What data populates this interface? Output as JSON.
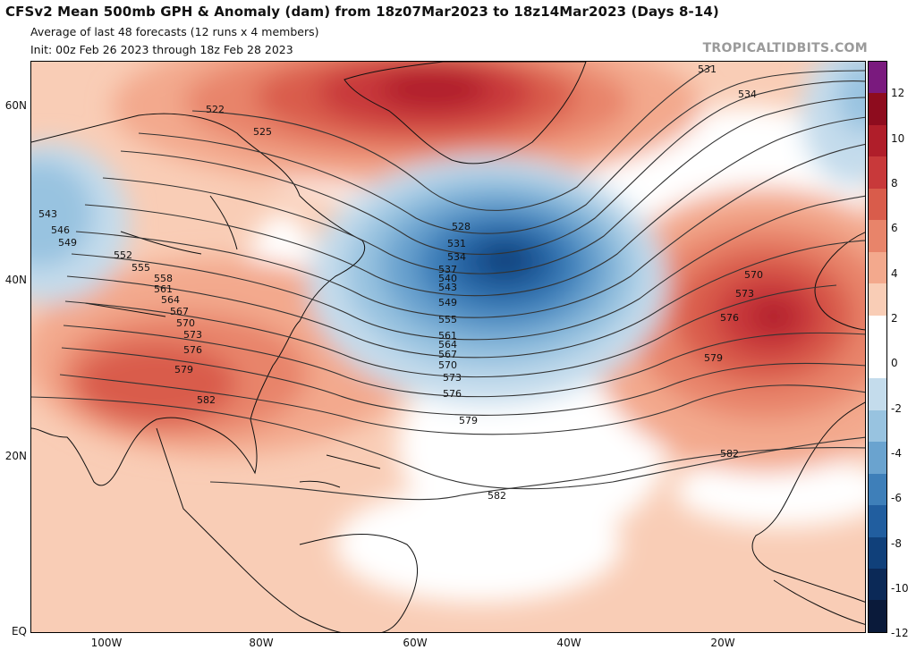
{
  "header": {
    "title": "CFSv2 Mean 500mb GPH & Anomaly (dam) from 18z07Mar2023 to 18z14Mar2023 (Days 8-14)",
    "subtitle1": "Average of last 48 forecasts (12 runs x 4 members)",
    "subtitle2": "Init: 00z Feb 26 2023 through 18z Feb 28 2023",
    "brand": "TROPICALTIDBITS.COM"
  },
  "axes": {
    "lat_labels": [
      "60N",
      "40N",
      "20N",
      "EQ"
    ],
    "lon_labels": [
      "100W",
      "80W",
      "60W",
      "40W",
      "20W"
    ]
  },
  "colorbar": {
    "ticks": [
      "12",
      "10",
      "8",
      "6",
      "4",
      "2",
      "0",
      "-2",
      "-4",
      "-6",
      "-8",
      "-10",
      "-12"
    ],
    "colors": [
      "#7a1a7e",
      "#8e0c1e",
      "#b01e2a",
      "#c8393a",
      "#d95c4b",
      "#e8846a",
      "#f3a98d",
      "#f9cdb6",
      "#ffffff",
      "#ffffff",
      "#c4dcec",
      "#98c3e0",
      "#6aa3cf",
      "#3e7fb9",
      "#215e9f",
      "#10407a",
      "#0b2957",
      "#0a1a3a"
    ]
  },
  "contours": {
    "values": [
      "522",
      "525",
      "528",
      "531",
      "534",
      "537",
      "540",
      "543",
      "546",
      "549",
      "552",
      "555",
      "558",
      "561",
      "564",
      "567",
      "570",
      "573",
      "576",
      "579",
      "582"
    ]
  }
}
